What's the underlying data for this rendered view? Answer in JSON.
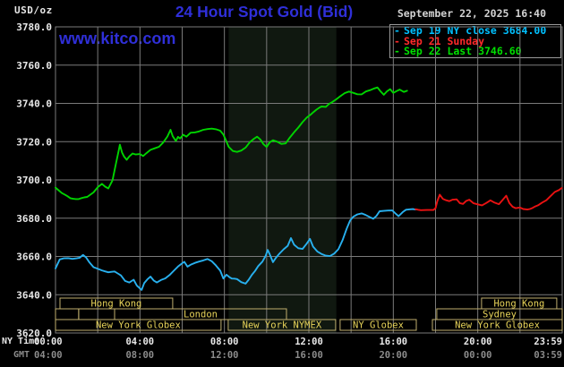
{
  "header": {
    "usd_oz": "USD/oz",
    "title": "24 Hour Spot Gold (Bid)",
    "date": "September 22, 2025 16:40"
  },
  "watermark": {
    "text": "www.kitco.com",
    "color": "#2f2fd8"
  },
  "legend": {
    "items": [
      {
        "marker": "-",
        "label": "Sep 19 NY close 3684.00",
        "color": "#00c0ff"
      },
      {
        "marker": "-",
        "label": "Sep 21 Sunday",
        "color": "#ff2a2a"
      },
      {
        "marker": "-",
        "label": "Sep 22 Last 3746.60",
        "color": "#00e000"
      }
    ]
  },
  "axes": {
    "ny_time_label": "NY Time",
    "gmt_label": "GMT",
    "y_ticks": [
      "3780.0",
      "3760.0",
      "3740.0",
      "3720.0",
      "3700.0",
      "3680.0",
      "3660.0",
      "3640.0",
      "3620.0"
    ],
    "x_ticks": [
      {
        "ny": "00:00",
        "gmt": "04:00",
        "hour": 0
      },
      {
        "ny": "04:00",
        "gmt": "08:00",
        "hour": 4
      },
      {
        "ny": "08:00",
        "gmt": "12:00",
        "hour": 8
      },
      {
        "ny": "12:00",
        "gmt": "16:00",
        "hour": 12
      },
      {
        "ny": "16:00",
        "gmt": "20:00",
        "hour": 16
      },
      {
        "ny": "20:00",
        "gmt": "00:00",
        "hour": 20
      },
      {
        "ny": "23:59",
        "gmt": "03:59",
        "hour": 23.98
      }
    ]
  },
  "sessions": {
    "rows": [
      [
        {
          "label": "Hong Kong",
          "from": 0.21,
          "to": 5.55
        },
        {
          "label": "Hong Kong",
          "from": 20.18,
          "to": 23.74
        }
      ],
      [
        {
          "label": "",
          "from": 0,
          "to": 1.1
        },
        {
          "label": "",
          "from": 1.1,
          "to": 2.8
        },
        {
          "label": "London",
          "from": 2.8,
          "to": 10.94
        },
        {
          "label": "Sydney",
          "from": 18.06,
          "to": 24
        }
      ],
      [
        {
          "label": "New York Globex",
          "from": 0,
          "to": 7.84
        },
        {
          "label": "New York NYMEX",
          "from": 8.18,
          "to": 13.27
        },
        {
          "label": "NY Globex",
          "from": 13.48,
          "to": 17.09
        },
        {
          "label": "New York Globex",
          "from": 17.85,
          "to": 24
        }
      ]
    ]
  },
  "chart_data": {
    "type": "line",
    "title": "24 Hour Spot Gold (Bid)",
    "x_unit": "hours_ny_time",
    "x_range": [
      0,
      24
    ],
    "ylim": [
      3620,
      3780
    ],
    "grid": {
      "x_step_hours": 2,
      "y_step": 20,
      "on": true
    },
    "shaded_session_hours": {
      "from": 8.2,
      "to": 13.3
    },
    "series": [
      {
        "name": "Sep 19 NY close",
        "close_value": 3684.0,
        "color": "#28b0ee",
        "points": [
          [
            0,
            3653.5
          ],
          [
            0.2,
            3658.5
          ],
          [
            0.4,
            3659.2
          ],
          [
            0.6,
            3659
          ],
          [
            0.8,
            3658.6
          ],
          [
            1.0,
            3659.2
          ],
          [
            1.15,
            3659.5
          ],
          [
            1.3,
            3660.9
          ],
          [
            1.45,
            3659.5
          ],
          [
            1.6,
            3657
          ],
          [
            1.8,
            3654.6
          ],
          [
            2.0,
            3653.5
          ],
          [
            2.2,
            3652.5
          ],
          [
            2.5,
            3651.5
          ],
          [
            2.8,
            3652
          ],
          [
            3.1,
            3650
          ],
          [
            3.3,
            3647
          ],
          [
            3.5,
            3646.5
          ],
          [
            3.7,
            3648
          ],
          [
            3.85,
            3645
          ],
          [
            4.0,
            3643.5
          ],
          [
            4.08,
            3642.3
          ],
          [
            4.2,
            3646
          ],
          [
            4.35,
            3648
          ],
          [
            4.5,
            3649.5
          ],
          [
            4.65,
            3647.5
          ],
          [
            4.8,
            3646.5
          ],
          [
            5.0,
            3647.5
          ],
          [
            5.2,
            3648.5
          ],
          [
            5.4,
            3650.5
          ],
          [
            5.6,
            3652.5
          ],
          [
            5.8,
            3654.5
          ],
          [
            6.0,
            3656.5
          ],
          [
            6.1,
            3657
          ],
          [
            6.25,
            3654.5
          ],
          [
            6.4,
            3655.5
          ],
          [
            6.6,
            3656.5
          ],
          [
            6.8,
            3657.5
          ],
          [
            7.0,
            3658
          ],
          [
            7.2,
            3658.5
          ],
          [
            7.4,
            3657.5
          ],
          [
            7.6,
            3655.5
          ],
          [
            7.8,
            3652.5
          ],
          [
            7.95,
            3648.5
          ],
          [
            8.1,
            3650.5
          ],
          [
            8.35,
            3648.5
          ],
          [
            8.6,
            3648
          ],
          [
            8.8,
            3646.5
          ],
          [
            9.0,
            3646
          ],
          [
            9.15,
            3648
          ],
          [
            9.3,
            3650.5
          ],
          [
            9.45,
            3652.5
          ],
          [
            9.6,
            3655
          ],
          [
            9.8,
            3657.5
          ],
          [
            9.95,
            3660.5
          ],
          [
            10.05,
            3663.3
          ],
          [
            10.15,
            3661
          ],
          [
            10.3,
            3657
          ],
          [
            10.45,
            3659.5
          ],
          [
            10.6,
            3661.5
          ],
          [
            10.8,
            3663.5
          ],
          [
            11.0,
            3665.5
          ],
          [
            11.15,
            3669.5
          ],
          [
            11.3,
            3666
          ],
          [
            11.5,
            3664.5
          ],
          [
            11.7,
            3664
          ],
          [
            11.9,
            3666.5
          ],
          [
            12.05,
            3669
          ],
          [
            12.2,
            3665
          ],
          [
            12.4,
            3662.5
          ],
          [
            12.6,
            3661.5
          ],
          [
            12.8,
            3660.5
          ],
          [
            13.0,
            3660
          ],
          [
            13.2,
            3661.5
          ],
          [
            13.4,
            3664
          ],
          [
            13.6,
            3668.5
          ],
          [
            13.8,
            3674.5
          ],
          [
            13.95,
            3678.5
          ],
          [
            14.1,
            3680.5
          ],
          [
            14.3,
            3682
          ],
          [
            14.5,
            3682.7
          ],
          [
            14.7,
            3681.5
          ],
          [
            14.9,
            3680.3
          ],
          [
            15.05,
            3679.5
          ],
          [
            15.2,
            3681
          ],
          [
            15.35,
            3683.4
          ],
          [
            15.55,
            3683.8
          ],
          [
            15.75,
            3684.2
          ],
          [
            15.95,
            3684
          ],
          [
            16.1,
            3682.5
          ],
          [
            16.25,
            3681.1
          ],
          [
            16.45,
            3683
          ],
          [
            16.6,
            3684.2
          ],
          [
            16.8,
            3684.6
          ],
          [
            17.05,
            3684.5
          ]
        ]
      },
      {
        "name": "Sep 21 Sunday",
        "color": "#ea1212",
        "points": [
          [
            17.05,
            3684.5
          ],
          [
            17.3,
            3684.4
          ],
          [
            17.6,
            3684.5
          ],
          [
            17.9,
            3684.4
          ],
          [
            18.0,
            3685
          ],
          [
            18.08,
            3689
          ],
          [
            18.2,
            3692.3
          ],
          [
            18.35,
            3690
          ],
          [
            18.5,
            3689.3
          ],
          [
            18.65,
            3688.8
          ],
          [
            18.8,
            3689.5
          ],
          [
            19.0,
            3690
          ],
          [
            19.15,
            3688
          ],
          [
            19.3,
            3687.5
          ],
          [
            19.45,
            3689
          ],
          [
            19.6,
            3689.6
          ],
          [
            19.8,
            3688
          ],
          [
            20.0,
            3687.2
          ],
          [
            20.2,
            3686.5
          ],
          [
            20.4,
            3688
          ],
          [
            20.6,
            3689.5
          ],
          [
            20.8,
            3688
          ],
          [
            21.0,
            3687.2
          ],
          [
            21.15,
            3689
          ],
          [
            21.35,
            3691.9
          ],
          [
            21.5,
            3688
          ],
          [
            21.65,
            3686
          ],
          [
            21.8,
            3685.2
          ],
          [
            22.0,
            3685.8
          ],
          [
            22.15,
            3685
          ],
          [
            22.35,
            3684.5
          ],
          [
            22.6,
            3685.5
          ],
          [
            22.85,
            3686.5
          ],
          [
            23.05,
            3688.1
          ],
          [
            23.25,
            3689.6
          ],
          [
            23.45,
            3691.5
          ],
          [
            23.65,
            3693.5
          ],
          [
            23.85,
            3694.8
          ],
          [
            23.98,
            3695.8
          ]
        ]
      },
      {
        "name": "Sep 22 Last",
        "last_value": 3746.6,
        "color": "#00d400",
        "points": [
          [
            0,
            3696
          ],
          [
            0.3,
            3693
          ],
          [
            0.7,
            3690.5
          ],
          [
            1.1,
            3690
          ],
          [
            1.5,
            3691
          ],
          [
            1.8,
            3693.5
          ],
          [
            2.0,
            3696
          ],
          [
            2.2,
            3698
          ],
          [
            2.35,
            3696.5
          ],
          [
            2.5,
            3695.5
          ],
          [
            2.7,
            3700
          ],
          [
            2.85,
            3708
          ],
          [
            3.0,
            3716
          ],
          [
            3.05,
            3718.5
          ],
          [
            3.15,
            3714.5
          ],
          [
            3.25,
            3712
          ],
          [
            3.37,
            3710.5
          ],
          [
            3.5,
            3712.5
          ],
          [
            3.65,
            3714
          ],
          [
            3.8,
            3713.5
          ],
          [
            4.0,
            3713.5
          ],
          [
            4.15,
            3712.5
          ],
          [
            4.3,
            3714
          ],
          [
            4.5,
            3715.5
          ],
          [
            4.7,
            3716.5
          ],
          [
            4.9,
            3717.5
          ],
          [
            5.1,
            3719.5
          ],
          [
            5.3,
            3722.5
          ],
          [
            5.45,
            3726
          ],
          [
            5.55,
            3723
          ],
          [
            5.7,
            3720.5
          ],
          [
            5.8,
            3722.5
          ],
          [
            5.9,
            3721.5
          ],
          [
            6.05,
            3723.5
          ],
          [
            6.2,
            3722.5
          ],
          [
            6.4,
            3724.5
          ],
          [
            6.6,
            3725
          ],
          [
            6.8,
            3725.5
          ],
          [
            7.0,
            3726
          ],
          [
            7.2,
            3726.5
          ],
          [
            7.4,
            3727
          ],
          [
            7.6,
            3726.5
          ],
          [
            7.8,
            3725.5
          ],
          [
            7.95,
            3723.5
          ],
          [
            8.05,
            3721.5
          ],
          [
            8.2,
            3717.5
          ],
          [
            8.4,
            3715
          ],
          [
            8.6,
            3714.5
          ],
          [
            8.8,
            3715.5
          ],
          [
            9.0,
            3717
          ],
          [
            9.2,
            3719.5
          ],
          [
            9.4,
            3721.5
          ],
          [
            9.55,
            3722.5
          ],
          [
            9.7,
            3721
          ],
          [
            9.85,
            3718.5
          ],
          [
            10.0,
            3717
          ],
          [
            10.15,
            3719.5
          ],
          [
            10.3,
            3720.5
          ],
          [
            10.5,
            3720
          ],
          [
            10.7,
            3719
          ],
          [
            10.9,
            3719
          ],
          [
            11.1,
            3722
          ],
          [
            11.3,
            3725
          ],
          [
            11.5,
            3727.5
          ],
          [
            11.7,
            3730
          ],
          [
            11.9,
            3732.5
          ],
          [
            12.1,
            3734.5
          ],
          [
            12.35,
            3736.5
          ],
          [
            12.6,
            3738.5
          ],
          [
            12.8,
            3738
          ],
          [
            12.95,
            3739.5
          ],
          [
            13.1,
            3740.5
          ],
          [
            13.3,
            3742
          ],
          [
            13.5,
            3744
          ],
          [
            13.7,
            3745.5
          ],
          [
            13.9,
            3746
          ],
          [
            14.1,
            3745.5
          ],
          [
            14.3,
            3745
          ],
          [
            14.5,
            3744.7
          ],
          [
            14.7,
            3746
          ],
          [
            14.9,
            3747
          ],
          [
            15.1,
            3748
          ],
          [
            15.25,
            3748.5
          ],
          [
            15.4,
            3746.5
          ],
          [
            15.55,
            3744.7
          ],
          [
            15.7,
            3746.5
          ],
          [
            15.85,
            3747.6
          ],
          [
            16.0,
            3745.6
          ],
          [
            16.15,
            3746.5
          ],
          [
            16.3,
            3747.2
          ],
          [
            16.5,
            3746.2
          ],
          [
            16.65,
            3746.6
          ]
        ]
      }
    ]
  },
  "colors": {
    "background": "#000000",
    "grid": "#7a7a7a",
    "shade": "#101810",
    "session_border": "#bfae6e",
    "session_text": "#e8d45a",
    "tick_text": "#e8e8e8",
    "gmt_text": "#8c8c8c",
    "legend_border": "#9a9a9a"
  }
}
